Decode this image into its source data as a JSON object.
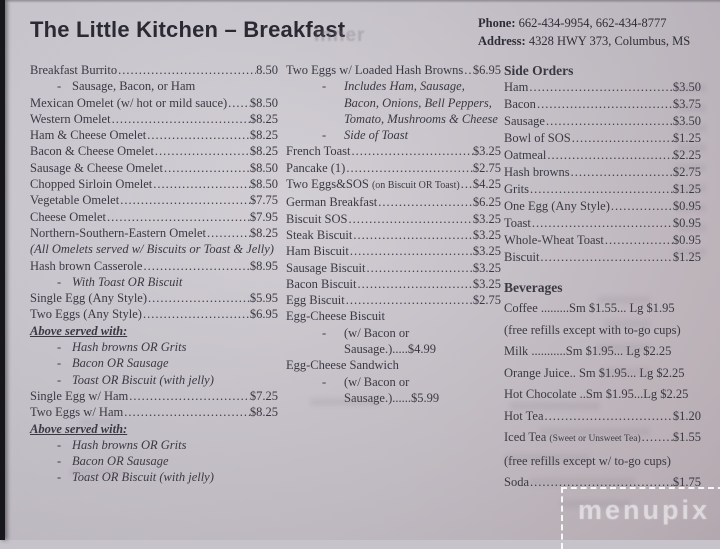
{
  "page": {
    "title": "The Little Kitchen – Breakfast",
    "ghost_text": "inner",
    "contact": {
      "phone_label": "Phone:",
      "phone_value": "662-434-9954, 662-434-8777",
      "address_label": "Address:",
      "address_value": "4328 HWY 373, Columbus, MS"
    },
    "watermark": "menupix",
    "paper_color": "#c8c4cb",
    "text_color": "#3a3943"
  },
  "columns": [
    {
      "items": [
        {
          "kind": "item",
          "name": "Breakfast Burrito",
          "price": "8.50"
        },
        {
          "kind": "dash",
          "text": "Sausage, Bacon, or Ham",
          "italic": false
        },
        {
          "kind": "item",
          "name": "Mexican Omelet (w/ hot or mild sauce)",
          "price": "$8.50"
        },
        {
          "kind": "item",
          "name": "Western Omelet",
          "price": "$8.25"
        },
        {
          "kind": "item",
          "name": "Ham & Cheese Omelet",
          "price": "$8.25"
        },
        {
          "kind": "item",
          "name": "Bacon & Cheese Omelet",
          "price": "$8.25"
        },
        {
          "kind": "item",
          "name": "Sausage & Cheese Omelet",
          "price": "$8.50"
        },
        {
          "kind": "item",
          "name": "Chopped Sirloin Omelet",
          "price": "$8.50"
        },
        {
          "kind": "item",
          "name": "Vegetable Omelet",
          "price": "$7.75"
        },
        {
          "kind": "item",
          "name": "Cheese Omelet",
          "price": "$7.95"
        },
        {
          "kind": "item",
          "name": "Northern-Southern-Eastern Omelet",
          "price": "$8.25"
        },
        {
          "kind": "note",
          "text": "(All Omelets served w/ Biscuits or Toast & Jelly)"
        },
        {
          "kind": "item",
          "name": "Hash brown Casserole",
          "price": "$8.95"
        },
        {
          "kind": "dash",
          "text": "With Toast OR Biscuit",
          "italic": true
        },
        {
          "kind": "item",
          "name": "Single Egg (Any Style)",
          "price": "$5.95"
        },
        {
          "kind": "item",
          "name": "Two Eggs (Any Style)",
          "price": "$6.95"
        },
        {
          "kind": "underline",
          "text": "Above served with:"
        },
        {
          "kind": "dash",
          "text": "Hash browns OR Grits",
          "italic": true
        },
        {
          "kind": "dash",
          "text": "Bacon OR Sausage",
          "italic": true
        },
        {
          "kind": "dash",
          "text": "Toast OR Biscuit (with jelly)",
          "italic": true
        },
        {
          "kind": "item",
          "name": "Single Egg w/ Ham",
          "price": "$7.25"
        },
        {
          "kind": "item",
          "name": "Two Eggs w/ Ham",
          "price": "$8.25"
        },
        {
          "kind": "underline",
          "text": "Above served with:"
        },
        {
          "kind": "dash",
          "text": "Hash browns OR Grits",
          "italic": true
        },
        {
          "kind": "dash",
          "text": "Bacon OR Sausage",
          "italic": true
        },
        {
          "kind": "dash",
          "text": "Toast OR Biscuit (with jelly)",
          "italic": true
        }
      ]
    },
    {
      "items": [
        {
          "kind": "item",
          "name": "Two Eggs w/ Loaded Hash Browns",
          "price": "$6.95"
        },
        {
          "kind": "dash",
          "text": "Includes Ham, Sausage, Bacon, Onions, Bell Peppers, Tomato, Mushrooms & Cheese",
          "italic": true
        },
        {
          "kind": "dash",
          "text": "Side of Toast",
          "italic": true
        },
        {
          "kind": "item",
          "name": "French Toast",
          "price": "$3.25"
        },
        {
          "kind": "item",
          "name": "Pancake (1)",
          "price": "$2.75"
        },
        {
          "kind": "item",
          "name": "Two Eggs&SOS",
          "small": "(on Biscuit OR Toast)",
          "price": "$4.25"
        },
        {
          "kind": "item",
          "name": "German Breakfast",
          "price": "$6.25"
        },
        {
          "kind": "item",
          "name": "Biscuit SOS",
          "price": "$3.25"
        },
        {
          "kind": "item",
          "name": "Steak Biscuit",
          "price": "$3.25"
        },
        {
          "kind": "item",
          "name": "Ham Biscuit",
          "price": "$3.25"
        },
        {
          "kind": "item",
          "name": "Sausage Biscuit",
          "price": "$3.25"
        },
        {
          "kind": "item",
          "name": "Bacon Biscuit",
          "price": "$3.25"
        },
        {
          "kind": "item",
          "name": "Egg Biscuit",
          "price": "$2.75"
        },
        {
          "kind": "plain",
          "text": "Egg-Cheese Biscuit"
        },
        {
          "kind": "dash",
          "text": "(w/ Bacon or Sausage.)",
          "dots": ".....",
          "price": "$4.99",
          "italic": false
        },
        {
          "kind": "plain",
          "text": "Egg-Cheese Sandwich"
        },
        {
          "kind": "dash",
          "text": "(w/ Bacon or Sausage.)",
          "dots": "......",
          "price": "$5.99",
          "italic": false
        }
      ]
    },
    {
      "items": [
        {
          "kind": "section",
          "text": "Side Orders"
        },
        {
          "kind": "item",
          "name": "Ham",
          "price": "$3.50"
        },
        {
          "kind": "item",
          "name": "Bacon",
          "price": "$3.75"
        },
        {
          "kind": "item",
          "name": "Sausage",
          "price": "$3.50"
        },
        {
          "kind": "item",
          "name": "Bowl of SOS",
          "price": "$1.25"
        },
        {
          "kind": "item",
          "name": "Oatmeal",
          "price": "$2.25"
        },
        {
          "kind": "item",
          "name": "Hash browns",
          "price": "$2.75"
        },
        {
          "kind": "item",
          "name": "Grits",
          "price": "$1.25"
        },
        {
          "kind": "item",
          "name": "One Egg (Any Style)",
          "price": "$0.95"
        },
        {
          "kind": "item",
          "name": "Toast",
          "price": "$0.95"
        },
        {
          "kind": "item",
          "name": "Whole-Wheat Toast",
          "price": "$0.95"
        },
        {
          "kind": "item",
          "name": "Biscuit",
          "price": "$1.25"
        },
        {
          "kind": "gap"
        },
        {
          "kind": "section",
          "text": "Beverages",
          "spaced": true
        },
        {
          "kind": "line",
          "text": "Coffee .........Sm $1.55... Lg $1.95",
          "spaced": true
        },
        {
          "kind": "line",
          "text": "(free refills except with to-go cups)",
          "spaced": true
        },
        {
          "kind": "line",
          "text": "Milk ...........Sm $1.95... Lg $2.25",
          "spaced": true
        },
        {
          "kind": "line",
          "text": "Orange Juice.. Sm $1.95... Lg $2.25",
          "spaced": true
        },
        {
          "kind": "line",
          "text": "Hot Chocolate ..Sm $1.95...Lg $2.25",
          "spaced": true
        },
        {
          "kind": "item",
          "name": "Hot Tea",
          "price": "$1.20",
          "spaced": true
        },
        {
          "kind": "item",
          "name": "Iced Tea",
          "small": "(Sweet or Unsweet Tea)",
          "price": "$1.55",
          "spaced": true
        },
        {
          "kind": "line",
          "text": "(free refills except w/ to-go cups)",
          "spaced": true
        },
        {
          "kind": "item",
          "name": "Soda",
          "price": "$1.75",
          "spaced": true
        }
      ]
    }
  ]
}
